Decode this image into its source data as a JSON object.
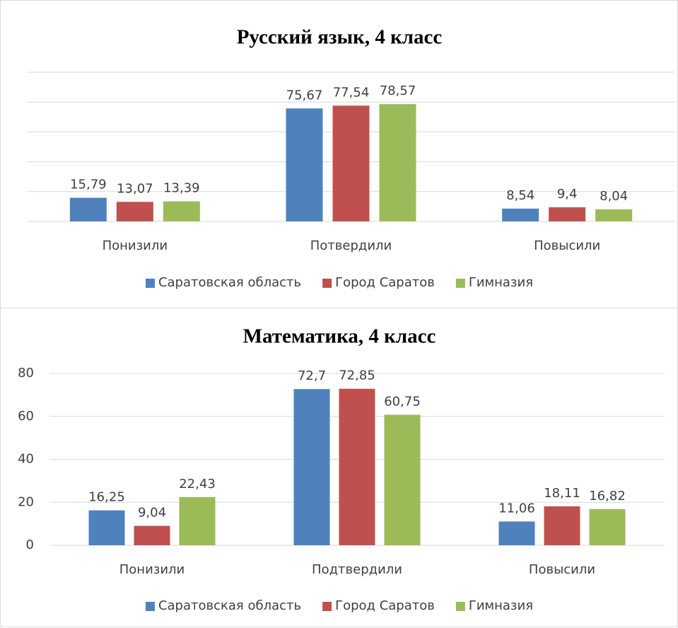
{
  "chart_data": [
    {
      "type": "bar",
      "title": "Русский язык, 4 класс",
      "categories": [
        "Понизили",
        "Потвердили",
        "Повысили"
      ],
      "series": [
        {
          "name": "Саратовская область",
          "color": "#4f81bd",
          "values": [
            15.79,
            75.67,
            8.54
          ],
          "value_labels": [
            "15,79",
            "75,67",
            "8,54"
          ]
        },
        {
          "name": "Город Саратов",
          "color": "#c0504d",
          "values": [
            13.07,
            77.54,
            9.4
          ],
          "value_labels": [
            "13,07",
            "77,54",
            "9,4"
          ]
        },
        {
          "name": "Гимназия",
          "color": "#9bbb59",
          "values": [
            13.39,
            78.57,
            8.04
          ],
          "value_labels": [
            "13,39",
            "78,57",
            "8,04"
          ]
        }
      ],
      "ylim": [
        0,
        100
      ],
      "yticks": [
        0,
        20,
        40,
        60,
        80,
        100
      ],
      "ytick_labels": false,
      "grid": true,
      "legend": "bottom"
    },
    {
      "type": "bar",
      "title": "Математика, 4 класс",
      "categories": [
        "Понизили",
        "Подтвердили",
        "Повысили"
      ],
      "series": [
        {
          "name": "Саратовская область",
          "color": "#4f81bd",
          "values": [
            16.25,
            72.7,
            11.06
          ],
          "value_labels": [
            "16,25",
            "72,7",
            "11,06"
          ]
        },
        {
          "name": "Город Саратов",
          "color": "#c0504d",
          "values": [
            9.04,
            72.85,
            18.11
          ],
          "value_labels": [
            "9,04",
            "72,85",
            "18,11"
          ]
        },
        {
          "name": "Гимназия",
          "color": "#9bbb59",
          "values": [
            22.43,
            60.75,
            16.82
          ],
          "value_labels": [
            "22,43",
            "60,75",
            "16,82"
          ]
        }
      ],
      "ylim": [
        0,
        80
      ],
      "yticks": [
        0,
        20,
        40,
        60,
        80
      ],
      "ytick_labels": true,
      "grid": true,
      "legend": "bottom"
    }
  ]
}
